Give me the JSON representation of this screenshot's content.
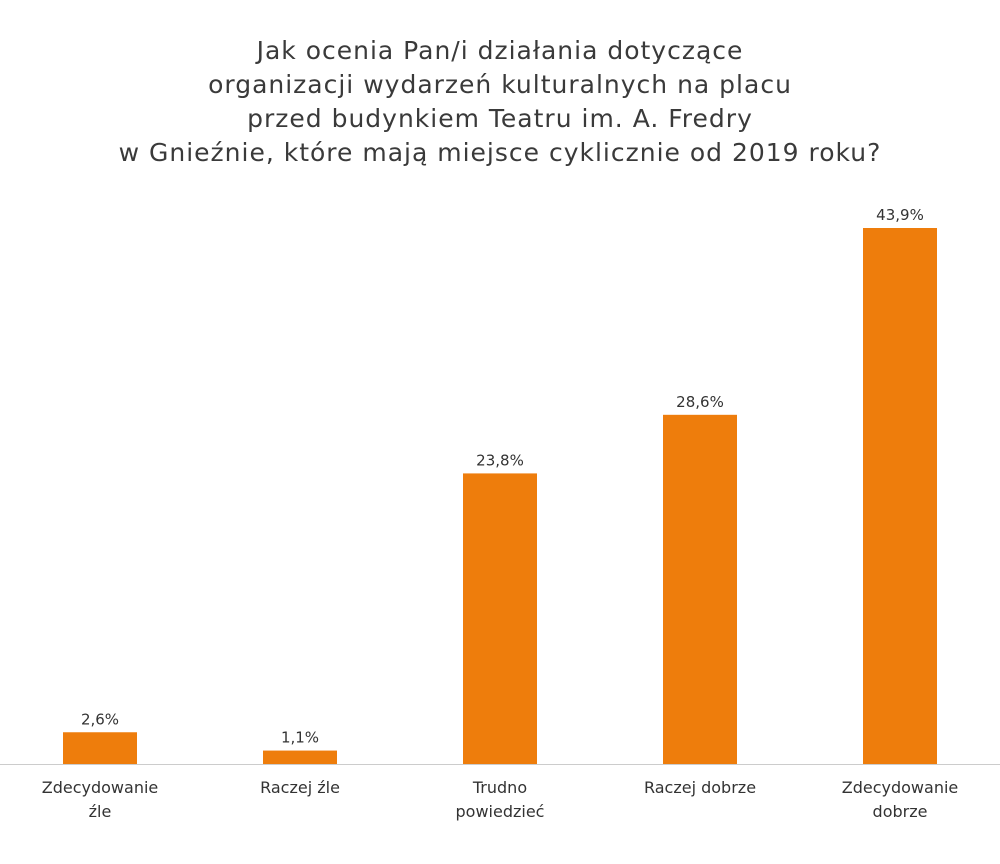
{
  "chart_data": {
    "type": "bar",
    "title_lines": [
      "Jak ocenia Pan/i działania dotyczące",
      "organizacji wydarzeń kulturalnych na placu",
      "przed budynkiem Teatru im. A. Fredry",
      "w Gnieźnie, które mają miejsce cyklicznie od 2019 roku?"
    ],
    "categories": [
      [
        "Zdecydowanie",
        "źle"
      ],
      [
        "Raczej źle"
      ],
      [
        "Trudno",
        "powiedzieć"
      ],
      [
        "Raczej dobrze"
      ],
      [
        "Zdecydowanie",
        "dobrze"
      ]
    ],
    "values": [
      2.6,
      1.1,
      23.8,
      28.6,
      43.9
    ],
    "value_labels": [
      "2,6%",
      "1,1%",
      "23,8%",
      "28,6%",
      "43,9%"
    ],
    "xlabel": "",
    "ylabel": "",
    "ylim": [
      0,
      43.9
    ],
    "grid": false,
    "legend": "none",
    "bar_color": "#ee7d0c",
    "axis_color": "#cccccc"
  }
}
